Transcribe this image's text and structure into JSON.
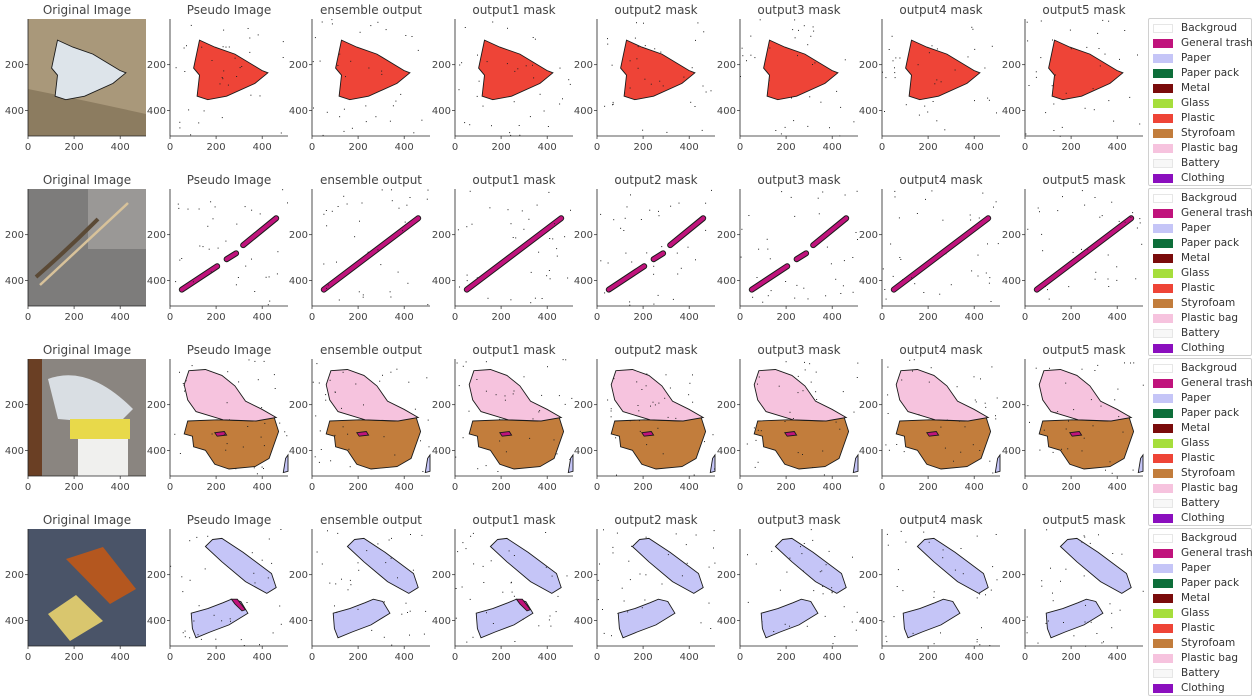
{
  "chart_data": {
    "type": "image-grid",
    "rows": 4,
    "columns": 8,
    "panel_titles": [
      "Original Image",
      "Pseudo Image",
      "ensemble output",
      "output1 mask",
      "output2 mask",
      "output3 mask",
      "output4 mask",
      "output5 mask"
    ],
    "x_ticks": [
      "0",
      "200",
      "400"
    ],
    "y_ticks": [
      "200",
      "400"
    ],
    "axis_range": [
      0,
      512
    ],
    "legend": [
      {
        "label": "Backgroud",
        "color": "#ffffff"
      },
      {
        "label": "General trash",
        "color": "#c0137c"
      },
      {
        "label": "Paper",
        "color": "#c5c5f7"
      },
      {
        "label": "Paper pack",
        "color": "#0d6e3a"
      },
      {
        "label": "Metal",
        "color": "#7a0b0b"
      },
      {
        "label": "Glass",
        "color": "#a6de3c"
      },
      {
        "label": "Plastic",
        "color": "#ee4437"
      },
      {
        "label": "Styrofoam",
        "color": "#c27d3c"
      },
      {
        "label": "Plastic bag",
        "color": "#f6c3de"
      },
      {
        "label": "Battery",
        "color": "#f7f7f7"
      },
      {
        "label": "Clothing",
        "color": "#8b0fbe"
      }
    ],
    "samples": [
      {
        "main_class": "Plastic"
      },
      {
        "main_class": "General trash"
      },
      {
        "main_class": "Styrofoam"
      },
      {
        "main_class": "Paper"
      }
    ]
  }
}
